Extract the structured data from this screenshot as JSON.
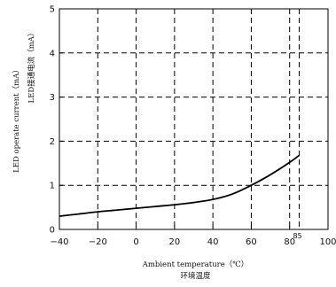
{
  "chart_data": {
    "type": "line",
    "xlabel": "Ambient temperature（℃）",
    "xlabel_cn": "环境温度",
    "ylabel": "LED operate current（mA）",
    "ylabel_cn": "LED接通电流（mA）",
    "xlim": [
      -40,
      100
    ],
    "ylim": [
      0,
      5
    ],
    "x_ticks": [
      -40,
      -20,
      0,
      20,
      40,
      60,
      80,
      100
    ],
    "x_tick_labels": [
      "−40",
      "−20",
      "0",
      "20",
      "40",
      "60",
      "80",
      "100"
    ],
    "y_ticks": [
      0,
      1,
      2,
      3,
      4,
      5
    ],
    "y_tick_labels": [
      "0",
      "1",
      "2",
      "3",
      "4",
      "5"
    ],
    "extra_x_mark": {
      "value": 85,
      "label": "85"
    },
    "grid": "dashed",
    "series": [
      {
        "x": [
          -40,
          -30,
          -20,
          -10,
          0,
          10,
          20,
          30,
          40,
          50,
          60,
          70,
          80,
          85
        ],
        "y": [
          0.3,
          0.35,
          0.4,
          0.44,
          0.48,
          0.52,
          0.56,
          0.61,
          0.68,
          0.8,
          1.0,
          1.24,
          1.52,
          1.68
        ]
      }
    ]
  }
}
